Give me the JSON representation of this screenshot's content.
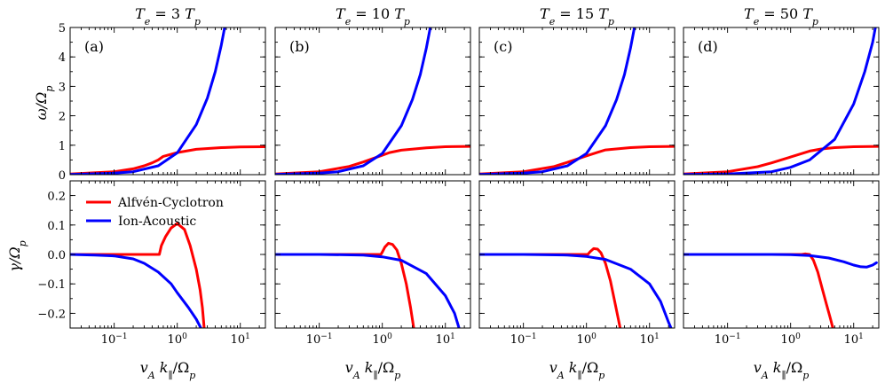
{
  "chart_data": {
    "type": "line",
    "layout": "2 rows x 4 columns of panels sharing x axis",
    "xscale": "log",
    "xlim": [
      0.02,
      25
    ],
    "xticks": [
      {
        "base": "10",
        "exp": "−1",
        "value": 0.1
      },
      {
        "base": "10",
        "exp": "0",
        "value": 1
      },
      {
        "base": "10",
        "exp": "1",
        "value": 10
      }
    ],
    "xlabel": "v_A k_∥ / Ω_p",
    "rows": [
      {
        "quantity": "omega",
        "ylabel": "ω / Ω_p",
        "ylim": [
          0,
          5
        ],
        "yticks": [
          "0",
          "1",
          "2",
          "3",
          "4",
          "5"
        ],
        "ytick_values": [
          0,
          1,
          2,
          3,
          4,
          5
        ]
      },
      {
        "quantity": "gamma",
        "ylabel": "γ / Ω_p",
        "ylim": [
          -0.25,
          0.25
        ],
        "yticks": [
          "−0.2",
          "−0.1",
          "0.0",
          "0.1",
          "0.2"
        ],
        "ytick_values": [
          -0.2,
          -0.1,
          0.0,
          0.1,
          0.2
        ]
      }
    ],
    "legend": [
      {
        "name": "Alfvén-Cyclotron",
        "color": "#ff0000"
      },
      {
        "name": "Ion-Acoustic",
        "color": "#0000ff"
      }
    ],
    "legend_location": "upper-left of panel (a) lower row",
    "colors": {
      "alfven": "#ff0000",
      "acoustic": "#0000ff"
    },
    "panels": [
      {
        "label": "(a)",
        "title_base": "3",
        "ratio": 3,
        "omega": {
          "alfven": {
            "x": [
              0.02,
              0.1,
              0.2,
              0.3,
              0.4,
              0.5,
              0.6,
              1.0,
              2.0,
              5.0,
              10.0,
              25.0
            ],
            "y": [
              0.02,
              0.1,
              0.2,
              0.3,
              0.4,
              0.5,
              0.62,
              0.75,
              0.86,
              0.92,
              0.94,
              0.95
            ]
          },
          "acoustic": {
            "x": [
              0.02,
              0.1,
              0.2,
              0.5,
              1.0,
              2.0,
              3.0,
              4.0,
              5.0,
              6.0
            ],
            "y": [
              0.01,
              0.05,
              0.1,
              0.3,
              0.74,
              1.7,
              2.6,
              3.5,
              4.4,
              5.3
            ]
          }
        },
        "gamma": {
          "alfven": {
            "x": [
              0.02,
              0.3,
              0.52,
              0.56,
              0.65,
              0.8,
              1.0,
              1.3,
              1.6,
              2.0,
              2.3,
              2.5,
              2.7
            ],
            "y": [
              0.0,
              0.0,
              0.0,
              0.03,
              0.06,
              0.09,
              0.105,
              0.085,
              0.03,
              -0.05,
              -0.12,
              -0.18,
              -0.26
            ]
          },
          "acoustic": {
            "x": [
              0.02,
              0.05,
              0.1,
              0.2,
              0.3,
              0.5,
              0.8,
              1.0,
              1.5,
              2.0,
              2.5
            ],
            "y": [
              0.0,
              -0.002,
              -0.005,
              -0.015,
              -0.03,
              -0.06,
              -0.1,
              -0.13,
              -0.18,
              -0.22,
              -0.26
            ]
          }
        }
      },
      {
        "label": "(b)",
        "title_base": "10",
        "ratio": 10,
        "omega": {
          "alfven": {
            "x": [
              0.02,
              0.1,
              0.3,
              0.5,
              1.0,
              1.3,
              2.0,
              5.0,
              10.0,
              25.0
            ],
            "y": [
              0.02,
              0.1,
              0.28,
              0.43,
              0.66,
              0.75,
              0.83,
              0.91,
              0.95,
              0.96
            ]
          },
          "acoustic": {
            "x": [
              0.02,
              0.1,
              0.2,
              0.5,
              1.0,
              2.0,
              3.0,
              4.0,
              5.0,
              6.0
            ],
            "y": [
              0.01,
              0.05,
              0.1,
              0.3,
              0.72,
              1.66,
              2.55,
              3.4,
              4.3,
              5.2
            ]
          }
        },
        "gamma": {
          "alfven": {
            "x": [
              0.02,
              0.5,
              0.95,
              1.0,
              1.1,
              1.25,
              1.45,
              1.7,
              2.0,
              2.4,
              2.8,
              3.2
            ],
            "y": [
              0.0,
              0.0,
              0.0,
              0.008,
              0.025,
              0.038,
              0.034,
              0.015,
              -0.03,
              -0.1,
              -0.18,
              -0.26
            ]
          },
          "acoustic": {
            "x": [
              0.02,
              0.1,
              0.5,
              1.0,
              2.0,
              5.0,
              10.0,
              14.0,
              17.0
            ],
            "y": [
              0.0,
              0.0,
              -0.002,
              -0.008,
              -0.02,
              -0.065,
              -0.14,
              -0.2,
              -0.26
            ]
          }
        }
      },
      {
        "label": "(c)",
        "title_base": "15",
        "ratio": 15,
        "omega": {
          "alfven": {
            "x": [
              0.02,
              0.1,
              0.3,
              0.5,
              1.0,
              1.5,
              2.0,
              5.0,
              10.0,
              25.0
            ],
            "y": [
              0.02,
              0.1,
              0.27,
              0.42,
              0.64,
              0.76,
              0.84,
              0.92,
              0.95,
              0.96
            ]
          },
          "acoustic": {
            "x": [
              0.02,
              0.1,
              0.2,
              0.5,
              1.0,
              2.0,
              3.0,
              4.0,
              5.0,
              6.0
            ],
            "y": [
              0.01,
              0.05,
              0.1,
              0.3,
              0.72,
              1.66,
              2.55,
              3.4,
              4.3,
              5.2
            ]
          }
        },
        "gamma": {
          "alfven": {
            "x": [
              0.02,
              0.5,
              1.05,
              1.15,
              1.3,
              1.5,
              1.7,
              2.0,
              2.4,
              2.8,
              3.2,
              3.5
            ],
            "y": [
              0.0,
              0.0,
              0.0,
              0.01,
              0.02,
              0.018,
              0.005,
              -0.03,
              -0.09,
              -0.16,
              -0.22,
              -0.26
            ]
          },
          "acoustic": {
            "x": [
              0.02,
              0.1,
              0.5,
              1.0,
              2.0,
              5.0,
              10.0,
              15.0,
              20.0,
              23.0
            ],
            "y": [
              0.0,
              0.0,
              -0.002,
              -0.007,
              -0.017,
              -0.05,
              -0.1,
              -0.16,
              -0.23,
              -0.26
            ]
          }
        }
      },
      {
        "label": "(d)",
        "title_base": "50",
        "ratio": 50,
        "omega": {
          "alfven": {
            "x": [
              0.02,
              0.1,
              0.3,
              0.5,
              1.0,
              2.0,
              3.0,
              5.0,
              10.0,
              25.0
            ],
            "y": [
              0.02,
              0.1,
              0.27,
              0.4,
              0.6,
              0.8,
              0.87,
              0.92,
              0.95,
              0.96
            ]
          },
          "acoustic": {
            "x": [
              0.02,
              0.1,
              0.5,
              1.0,
              2.0,
              5.0,
              10.0,
              15.0,
              20.0,
              23.0
            ],
            "y": [
              0.005,
              0.02,
              0.1,
              0.25,
              0.5,
              1.2,
              2.4,
              3.5,
              4.5,
              5.2
            ]
          }
        },
        "gamma": {
          "alfven": {
            "x": [
              0.02,
              0.5,
              1.5,
              1.7,
              2.0,
              2.3,
              2.7,
              3.2,
              3.7,
              4.3,
              4.8
            ],
            "y": [
              0.0,
              0.0,
              0.0,
              0.002,
              0.0,
              -0.02,
              -0.06,
              -0.12,
              -0.17,
              -0.22,
              -0.26
            ]
          },
          "acoustic": {
            "x": [
              0.02,
              0.5,
              1.0,
              2.0,
              4.0,
              7.0,
              10.0,
              13.0,
              16.0,
              20.0,
              23.0
            ],
            "y": [
              0.0,
              0.0,
              -0.001,
              -0.004,
              -0.012,
              -0.025,
              -0.036,
              -0.042,
              -0.043,
              -0.036,
              -0.028
            ]
          }
        }
      }
    ]
  }
}
